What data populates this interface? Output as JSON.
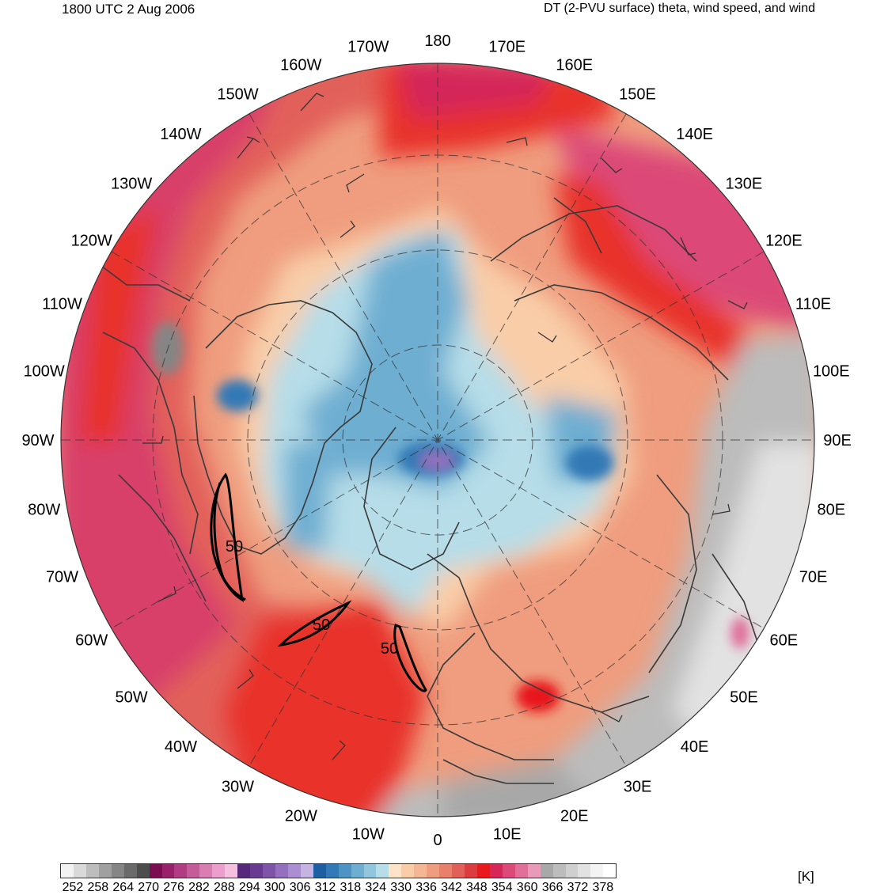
{
  "header": {
    "datetime": "1800 UTC 2 Aug 2006",
    "product": "DT (2-PVU surface) theta, wind speed, and wind"
  },
  "map": {
    "projection": "north-polar-stereographic",
    "longitude_labels": [
      "0",
      "10E",
      "20E",
      "30E",
      "40E",
      "50E",
      "60E",
      "70E",
      "80E",
      "90E",
      "100E",
      "110E",
      "120E",
      "130E",
      "140E",
      "150E",
      "160E",
      "170E",
      "180",
      "170W",
      "160W",
      "150W",
      "140W",
      "130W",
      "120W",
      "110W",
      "100W",
      "90W",
      "80W",
      "70W",
      "60W",
      "50W",
      "40W",
      "30W",
      "20W",
      "10W"
    ],
    "wind_speed_contour_labels": [
      "50",
      "50",
      "50"
    ],
    "colors": {
      "cold_core": "#8d5cb8",
      "blue_trough": "#3f7cba",
      "light_blue": "#9fd0e0",
      "peach": "#f8d0b0",
      "salmon": "#f0a080",
      "red": "#e8302a",
      "magenta": "#d8406a",
      "gray_tropics": "#b8b8b8",
      "coastline": "#3a3a3a"
    }
  },
  "colorbar": {
    "unit": "[K]",
    "tick_labels": [
      "252",
      "258",
      "264",
      "270",
      "276",
      "282",
      "288",
      "294",
      "300",
      "306",
      "312",
      "318",
      "324",
      "330",
      "336",
      "342",
      "348",
      "354",
      "360",
      "366",
      "372",
      "378"
    ],
    "colors": [
      "#f2f2f2",
      "#d9d9d9",
      "#bdbdbd",
      "#a0a0a0",
      "#858585",
      "#6a6a6a",
      "#4d4d4d",
      "#7a0e50",
      "#98216a",
      "#b03d84",
      "#c55c9a",
      "#d87eb2",
      "#ec9fcc",
      "#f5c0de",
      "#55287a",
      "#6a3a92",
      "#7d54a8",
      "#9570be",
      "#ab8ed2",
      "#c5b3e2",
      "#1e5fa3",
      "#3279b6",
      "#4d93c4",
      "#6eaed1",
      "#92c6dc",
      "#b6dde8",
      "#fde3c8",
      "#f9cda8",
      "#f4b694",
      "#ef9d7e",
      "#e8806c",
      "#e2605a",
      "#dc3c40",
      "#e8181c",
      "#d4285a",
      "#dc4a78",
      "#e0709a",
      "#e89ab8",
      "#a8a8a8",
      "#bcbcbc",
      "#cfcfcf",
      "#e2e2e2",
      "#f4f4f4",
      "#ffffff"
    ]
  }
}
